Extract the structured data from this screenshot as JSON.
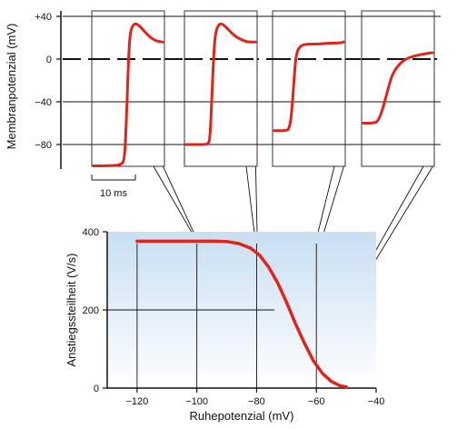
{
  "colors": {
    "curve": "#e2231a",
    "axis": "#111111",
    "panel_border": "#333333",
    "shade_top": "#c8dff2",
    "shade_bottom": "#ffffff"
  },
  "chart_data": [
    {
      "type": "line",
      "ylabel": "Membranpotenzial (mV)",
      "yticks": [
        "+40",
        "0",
        "−40",
        "−80"
      ],
      "ytick_values": [
        40,
        0,
        -40,
        -80
      ],
      "ylim": [
        -100,
        45
      ],
      "scale_bar": {
        "label": "10 ms",
        "duration_ms": 10
      },
      "series": [
        {
          "values": [
            [
              0,
              -100
            ],
            [
              10,
              -100
            ],
            [
              15,
              -99
            ],
            [
              17,
              -95
            ],
            [
              18,
              -60
            ],
            [
              19,
              -10
            ],
            [
              20,
              25
            ],
            [
              22,
              33
            ],
            [
              24,
              33
            ],
            [
              27,
              28
            ],
            [
              30,
              22
            ],
            [
              34,
              17
            ],
            [
              38,
              16
            ]
          ]
        },
        {
          "values": [
            [
              0,
              -80
            ],
            [
              11,
              -80
            ],
            [
              12,
              -79
            ],
            [
              13,
              -76
            ],
            [
              14,
              -40
            ],
            [
              15,
              0
            ],
            [
              16,
              25
            ],
            [
              18,
              33
            ],
            [
              20,
              33
            ],
            [
              23,
              28
            ],
            [
              27,
              21
            ],
            [
              33,
              16
            ],
            [
              38,
              16
            ]
          ]
        },
        {
          "values": [
            [
              0,
              -67
            ],
            [
              7,
              -67
            ],
            [
              8,
              -65
            ],
            [
              9,
              -58
            ],
            [
              10,
              -40
            ],
            [
              11,
              -15
            ],
            [
              12,
              5
            ],
            [
              14,
              12
            ],
            [
              17,
              14
            ],
            [
              24,
              14
            ],
            [
              30,
              15
            ],
            [
              36,
              15
            ],
            [
              38,
              16
            ]
          ]
        },
        {
          "values": [
            [
              0,
              -60
            ],
            [
              6,
              -60
            ],
            [
              8,
              -58
            ],
            [
              10,
              -50
            ],
            [
              12,
              -38
            ],
            [
              14,
              -25
            ],
            [
              16,
              -14
            ],
            [
              19,
              -6
            ],
            [
              23,
              0
            ],
            [
              28,
              3
            ],
            [
              34,
              5
            ],
            [
              38,
              6
            ]
          ]
        }
      ]
    },
    {
      "type": "line",
      "xlabel": "Ruhepotenzial (mV)",
      "ylabel": "Anstiegssteilheit (V/s)",
      "xticks": [
        "−120",
        "−100",
        "−80",
        "−60",
        "−40"
      ],
      "xtick_values": [
        -120,
        -100,
        -80,
        -60,
        -40
      ],
      "yticks": [
        "0",
        "200",
        "400"
      ],
      "ytick_values": [
        0,
        200,
        400
      ],
      "xlim": [
        -130,
        -40
      ],
      "ylim": [
        0,
        400
      ],
      "grid": true,
      "series": [
        {
          "values": [
            [
              -120,
              376
            ],
            [
              -110,
              376
            ],
            [
              -100,
              376
            ],
            [
              -95,
              376
            ],
            [
              -90,
              375
            ],
            [
              -86,
              370
            ],
            [
              -82,
              358
            ],
            [
              -79,
              340
            ],
            [
              -76,
              310
            ],
            [
              -73,
              270
            ],
            [
              -70,
              220
            ],
            [
              -67,
              165
            ],
            [
              -64,
              115
            ],
            [
              -61,
              70
            ],
            [
              -58,
              38
            ],
            [
              -55,
              17
            ],
            [
              -52,
              6
            ],
            [
              -50,
              3
            ]
          ]
        }
      ]
    }
  ]
}
